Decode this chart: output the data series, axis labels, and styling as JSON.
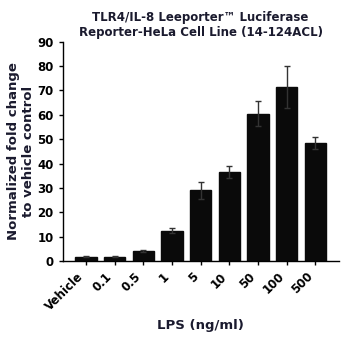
{
  "categories": [
    "Vehicle",
    "0.1",
    "0.5",
    "1",
    "5",
    "10",
    "50",
    "100",
    "500"
  ],
  "values": [
    1.8,
    1.8,
    4.2,
    12.5,
    29.0,
    36.5,
    60.5,
    71.5,
    48.5
  ],
  "errors": [
    0.3,
    0.3,
    0.5,
    1.0,
    3.5,
    2.5,
    5.0,
    8.5,
    2.5
  ],
  "bar_color": "#0a0a0a",
  "error_color": "#333333",
  "title_line1": "TLR4/IL-8 Leeporter™ Luciferase",
  "title_line2": "Reporter-HeLa Cell Line (14-124ACL)",
  "title_color": "#1a1a2e",
  "xlabel": "LPS (ng/ml)",
  "xlabel_color": "#1a1a2e",
  "ylabel": "Normalized fold change\nto vehicle control",
  "ylabel_color": "#1a1a2e",
  "ylim": [
    0,
    90
  ],
  "yticks": [
    0,
    10,
    20,
    30,
    40,
    50,
    60,
    70,
    80,
    90
  ],
  "title_fontsize": 8.5,
  "axis_label_fontsize": 9.5,
  "tick_fontsize": 8.5,
  "background_color": "#ffffff"
}
